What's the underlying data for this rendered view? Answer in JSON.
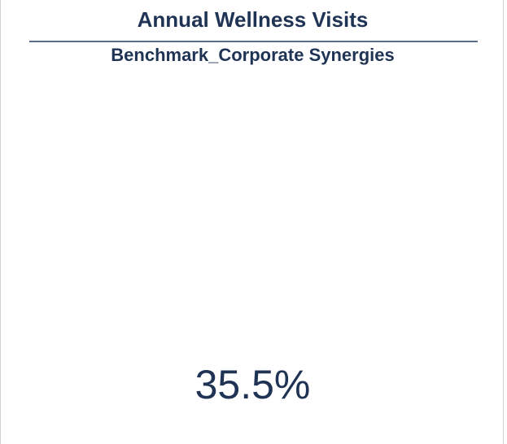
{
  "tile": {
    "title": "Annual Wellness Visits",
    "subtitle": "Benchmark_Corporate Synergies",
    "value": "35.5%"
  },
  "colors": {
    "text": "#1f3354",
    "divider": "#5a6e8c",
    "border": "#cfd3d8",
    "background": "#ffffff"
  }
}
